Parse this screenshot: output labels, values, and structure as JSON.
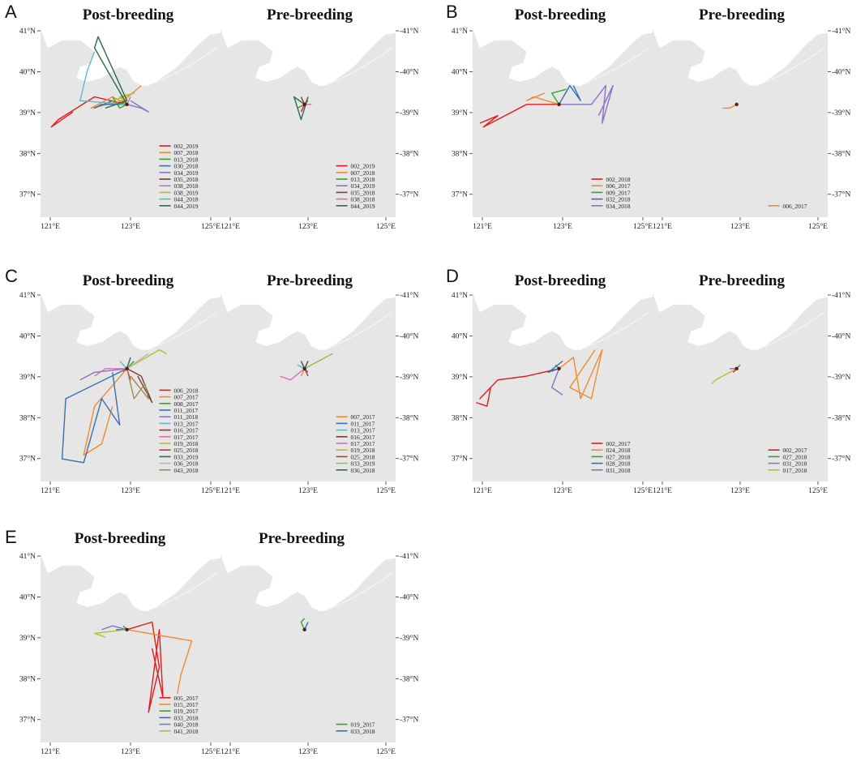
{
  "figure": {
    "axes": {
      "lat_labels_left": [
        "41°N",
        "40°N",
        "39°N",
        "38°N",
        "37°N"
      ],
      "lat_labels_right": [
        "41°N",
        "40°N",
        "39°N",
        "38°N",
        "37°N"
      ],
      "lon_labels": [
        "121°E",
        "123°E",
        "125°E"
      ]
    },
    "colors": {
      "land": "#e6e6e6",
      "sea": "#ffffff",
      "coastline": "#f5f5f5"
    }
  },
  "panels": [
    {
      "letter": "A",
      "post": {
        "title": "Post-breeding",
        "legend": [
          {
            "id": "002_2019",
            "color": "#e41a1c"
          },
          {
            "id": "007_2018",
            "color": "#f28a2c"
          },
          {
            "id": "013_2018",
            "color": "#3aa02c"
          },
          {
            "id": "030_2018",
            "color": "#3a6fb0"
          },
          {
            "id": "034_2019",
            "color": "#8a72c0"
          },
          {
            "id": "035_2018",
            "color": "#7a3d38"
          },
          {
            "id": "038_2018",
            "color": "#d66fb8"
          },
          {
            "id": "038_2019",
            "color": "#b5bd2c"
          },
          {
            "id": "044_2018",
            "color": "#5fb8cc"
          },
          {
            "id": "044_2019",
            "color": "#2a6a50"
          }
        ]
      },
      "pre": {
        "title": "Pre-breeding",
        "legend": [
          {
            "id": "002_2019",
            "color": "#e41a1c"
          },
          {
            "id": "007_2018",
            "color": "#f28a2c"
          },
          {
            "id": "013_2018",
            "color": "#3aa02c"
          },
          {
            "id": "034_2019",
            "color": "#8a72c0"
          },
          {
            "id": "035_2018",
            "color": "#7a3d38"
          },
          {
            "id": "038_2018",
            "color": "#d66fb8"
          },
          {
            "id": "044_2019",
            "color": "#2a6a50"
          }
        ]
      }
    },
    {
      "letter": "B",
      "post": {
        "title": "Post-breeding",
        "legend": [
          {
            "id": "002_2018",
            "color": "#e41a1c"
          },
          {
            "id": "006_2017",
            "color": "#f28a2c"
          },
          {
            "id": "009_2017",
            "color": "#3aa02c"
          },
          {
            "id": "032_2018",
            "color": "#3a6fb0"
          },
          {
            "id": "034_2018",
            "color": "#8a72c0"
          }
        ]
      },
      "pre": {
        "title": "Pre-breeding",
        "legend": [
          {
            "id": "006_2017",
            "color": "#f28a2c"
          }
        ]
      }
    },
    {
      "letter": "C",
      "post": {
        "title": "Post-breeding",
        "legend": [
          {
            "id": "006_2018",
            "color": "#e41a1c"
          },
          {
            "id": "007_2017",
            "color": "#f28a2c"
          },
          {
            "id": "008_2017",
            "color": "#3aa02c"
          },
          {
            "id": "011_2017",
            "color": "#3a6fb0"
          },
          {
            "id": "011_2018",
            "color": "#8a72c0"
          },
          {
            "id": "013_2017",
            "color": "#5fb8cc"
          },
          {
            "id": "016_2017",
            "color": "#7a3d38"
          },
          {
            "id": "017_2017",
            "color": "#d66fb8"
          },
          {
            "id": "019_2018",
            "color": "#b5bd2c"
          },
          {
            "id": "025_2018",
            "color": "#c0392b"
          },
          {
            "id": "033_2019",
            "color": "#2a6a50"
          },
          {
            "id": "036_2018",
            "color": "#b8b8b8"
          },
          {
            "id": "043_2018",
            "color": "#a08a50"
          }
        ]
      },
      "pre": {
        "title": "Pre-breeding",
        "legend": [
          {
            "id": "007_2017",
            "color": "#f28a2c"
          },
          {
            "id": "011_2017",
            "color": "#3a6fb0"
          },
          {
            "id": "013_2017",
            "color": "#5fb8cc"
          },
          {
            "id": "016_2017",
            "color": "#7a3d38"
          },
          {
            "id": "017_2017",
            "color": "#d66fb8"
          },
          {
            "id": "019_2018",
            "color": "#b5bd2c"
          },
          {
            "id": "025_2018",
            "color": "#c0392b"
          },
          {
            "id": "033_2019",
            "color": "#8ac24a"
          },
          {
            "id": "036_2018",
            "color": "#2a6a50"
          }
        ]
      }
    },
    {
      "letter": "D",
      "post": {
        "title": "Post-breeding",
        "legend": [
          {
            "id": "002_2017",
            "color": "#e41a1c"
          },
          {
            "id": "024_2018",
            "color": "#f28a2c"
          },
          {
            "id": "027_2018",
            "color": "#3aa02c"
          },
          {
            "id": "028_2018",
            "color": "#3a6fb0"
          },
          {
            "id": "031_2018",
            "color": "#8a72c0"
          }
        ]
      },
      "pre": {
        "title": "Pre-breeding",
        "legend": [
          {
            "id": "002_2017",
            "color": "#e41a1c"
          },
          {
            "id": "027_2018",
            "color": "#3aa02c"
          },
          {
            "id": "031_2018",
            "color": "#8a72c0"
          },
          {
            "id": "017_2018",
            "color": "#b5bd2c"
          }
        ]
      }
    },
    {
      "letter": "E",
      "post": {
        "title": "Post-breeding",
        "legend": [
          {
            "id": "005_2017",
            "color": "#e41a1c"
          },
          {
            "id": "015_2017",
            "color": "#f28a2c"
          },
          {
            "id": "019_2017",
            "color": "#3aa02c"
          },
          {
            "id": "033_2018",
            "color": "#3a6fb0"
          },
          {
            "id": "040_2018",
            "color": "#8a72c0"
          },
          {
            "id": "041_2018",
            "color": "#b5bd2c"
          }
        ]
      },
      "pre": {
        "title": "Pre-breeding",
        "legend": [
          {
            "id": "019_2017",
            "color": "#3aa02c"
          },
          {
            "id": "033_2018",
            "color": "#3a6fb0"
          }
        ]
      }
    }
  ]
}
